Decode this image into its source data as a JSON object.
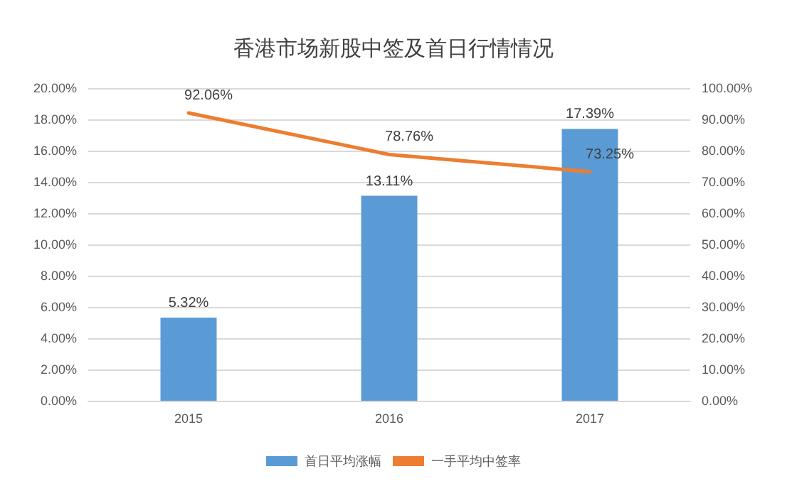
{
  "chart_data": {
    "type": "bar",
    "title": "香港市场新股中签及首日行情情况",
    "categories": [
      "2015",
      "2016",
      "2017"
    ],
    "series": [
      {
        "name": "首日平均涨幅",
        "color": "#5b9bd5",
        "values": [
          5.32,
          13.11,
          17.39
        ],
        "value_labels": [
          "5.32%",
          "13.11%",
          "17.39%"
        ]
      },
      {
        "name": "一手平均中签率",
        "type": "line",
        "axis": "y2",
        "color": "#ed7d31",
        "values": [
          92.06,
          78.76,
          73.25
        ],
        "value_labels": [
          "92.06%",
          "78.76%",
          "73.25%"
        ]
      }
    ],
    "ylim": [
      0,
      20
    ],
    "yticks": [
      {
        "value": 0,
        "label": "0.00%"
      },
      {
        "value": 2,
        "label": "2.00%"
      },
      {
        "value": 4,
        "label": "4.00%"
      },
      {
        "value": 6,
        "label": "6.00%"
      },
      {
        "value": 8,
        "label": "8.00%"
      },
      {
        "value": 10,
        "label": "10.00%"
      },
      {
        "value": 12,
        "label": "12.00%"
      },
      {
        "value": 14,
        "label": "14.00%"
      },
      {
        "value": 16,
        "label": "16.00%"
      },
      {
        "value": 18,
        "label": "18.00%"
      },
      {
        "value": 20,
        "label": "20.00%"
      }
    ],
    "y2lim": [
      0,
      100
    ],
    "y2ticks": [
      {
        "value": 0,
        "label": "0.00%"
      },
      {
        "value": 10,
        "label": "10.00%"
      },
      {
        "value": 20,
        "label": "20.00%"
      },
      {
        "value": 30,
        "label": "30.00%"
      },
      {
        "value": 40,
        "label": "40.00%"
      },
      {
        "value": 50,
        "label": "50.00%"
      },
      {
        "value": 60,
        "label": "60.00%"
      },
      {
        "value": 70,
        "label": "70.00%"
      },
      {
        "value": 80,
        "label": "80.00%"
      },
      {
        "value": 90,
        "label": "90.00%"
      },
      {
        "value": 100,
        "label": "100.00%"
      }
    ],
    "grid": "y",
    "legend": "bottom",
    "marker": "none",
    "line_style": "solid"
  }
}
